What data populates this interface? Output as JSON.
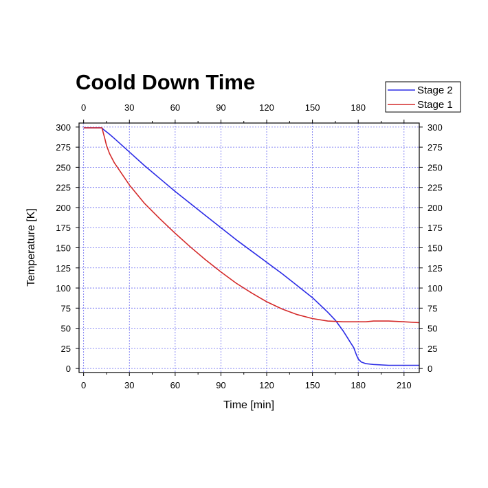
{
  "chart_data": {
    "type": "line",
    "title": "Coold Down Time",
    "xlabel": "Time [min]",
    "ylabel": "Temperature [K]",
    "xlim": [
      -3,
      220
    ],
    "ylim": [
      -5,
      305
    ],
    "x_ticks": [
      0,
      30,
      60,
      90,
      120,
      150,
      180,
      210
    ],
    "y_ticks": [
      0,
      25,
      50,
      75,
      100,
      125,
      150,
      175,
      200,
      225,
      250,
      275,
      300
    ],
    "x_ticks_top": [
      0,
      30,
      60,
      90,
      120,
      150,
      180
    ],
    "grid": true,
    "legend_position": "top-right",
    "series": [
      {
        "name": "Stage 2",
        "color": "#2a2ae6",
        "x": [
          0,
          5,
          10,
          12,
          13,
          15,
          17,
          20,
          30,
          40,
          50,
          60,
          70,
          80,
          90,
          100,
          110,
          120,
          130,
          140,
          150,
          160,
          165,
          170,
          173,
          175,
          177,
          178,
          179,
          180,
          181,
          182,
          185,
          190,
          200,
          210,
          220
        ],
        "y": [
          299,
          299,
          299,
          299,
          297,
          294,
          291,
          286,
          269,
          252,
          236,
          220,
          205,
          190,
          175,
          160,
          146,
          132,
          118,
          103,
          88,
          70,
          60,
          47,
          38,
          32,
          26,
          21,
          16,
          12,
          10,
          8,
          6,
          5,
          4,
          4,
          4
        ]
      },
      {
        "name": "Stage 1",
        "color": "#d42a2a",
        "x": [
          0,
          5,
          10,
          12,
          13,
          14,
          15,
          17,
          20,
          30,
          40,
          50,
          60,
          70,
          80,
          90,
          100,
          110,
          120,
          130,
          140,
          150,
          160,
          170,
          180,
          185,
          190,
          200,
          210,
          220
        ],
        "y": [
          299,
          299,
          299,
          299,
          292,
          285,
          277,
          267,
          256,
          228,
          205,
          186,
          168,
          151,
          135,
          120,
          106,
          94,
          83,
          74,
          67,
          62,
          59,
          58,
          58,
          58,
          59,
          59,
          58,
          57
        ]
      }
    ]
  }
}
